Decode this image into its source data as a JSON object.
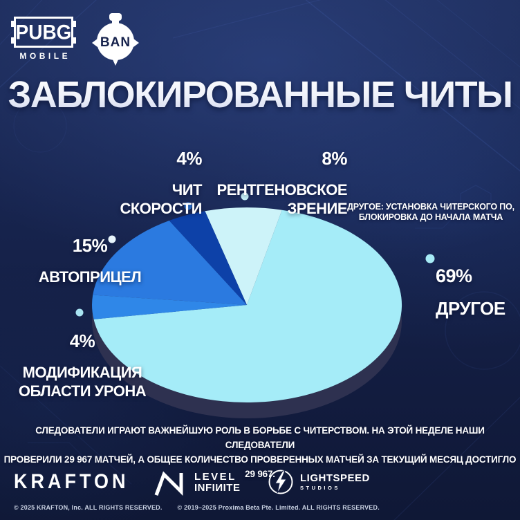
{
  "header": {
    "pubg_word": "PUBG",
    "pubg_sub": "MOBILE",
    "ban_label": "BAN"
  },
  "title": "ЗАБЛОКИРОВАННЫЕ ЧИТЫ",
  "chart_data": {
    "type": "pie",
    "title": "ЗАБЛОКИРОВАННЫЕ ЧИТЫ",
    "units": "percent",
    "start_angle_deg": -15.7,
    "clockwise": true,
    "rim_color": "#2e3150",
    "segments": [
      {
        "id": "xray",
        "label": "РЕНТГЕНОВСКОЕ ЗРЕНИЕ",
        "value": 8,
        "color": "#cdf3f9",
        "dot_color": "#c6f0f8"
      },
      {
        "id": "other",
        "label": "ДРУГОЕ",
        "value": 69,
        "color": "#a5ecf8",
        "dot_color": "#a7ebf6"
      },
      {
        "id": "damage-area",
        "label": "МОДИФИКАЦИЯ ОБЛАСТИ УРОНА",
        "value": 4,
        "color": "#2f87e8",
        "dot_color": "#a9e4f2"
      },
      {
        "id": "aimbot",
        "label": "АВТОПРИЦЕЛ",
        "value": 15,
        "color": "#2b7ae0",
        "dot_color": "#e8f5fc"
      },
      {
        "id": "speed",
        "label": "ЧИТ СКОРОСТИ",
        "value": 4,
        "color": "#0d41a8",
        "dot_color": "#2f7ce0"
      }
    ]
  },
  "callouts": {
    "speed": {
      "pct": "4%",
      "label": "ЧИТ\nСКОРОСТИ"
    },
    "xray": {
      "pct": "8%",
      "label": "РЕНТГЕНОВСКОЕ\nЗРЕНИЕ"
    },
    "aimbot": {
      "pct": "15%",
      "label": "АВТОПРИЦЕЛ"
    },
    "damage": {
      "pct": "4%",
      "label": "МОДИФИКАЦИЯ\nОБЛАСТИ УРОНА"
    },
    "other": {
      "pct": "69%",
      "label": "ДРУГОЕ"
    }
  },
  "other_note": "ДРУГОЕ: УСТАНОВКА ЧИТЕРСКОГО ПО,\nБЛОКИРОВКА ДО НАЧАЛА МАТЧА",
  "summary": "СЛЕДОВАТЕЛИ ИГРАЮТ ВАЖНЕЙШУЮ РОЛЬ В БОРЬБЕ С ЧИТЕРСТВОМ. НА ЭТОЙ НЕДЕЛЕ НАШИ СЛЕДОВАТЕЛИ\nПРОВЕРИЛИ 29 967 МАТЧЕЙ, А ОБЩЕЕ КОЛИЧЕСТВО ПРОВЕРЕННЫХ МАТЧЕЙ ЗА ТЕКУЩИЙ МЕСЯЦ ДОСТИГЛО 29 967.",
  "footer": {
    "krafton": "KRAFTON",
    "level_infinite_line1": "LEVEL",
    "level_infinite_line2": "INFIИITE",
    "lightspeed_line1": "LIGHTSPEED",
    "lightspeed_line2": "STUDIOS",
    "copyright_1": "© 2025 KRAFTON, Inc. ALL RIGHTS RESERVED.",
    "copyright_2": "© 2019–2025 Proxima Beta Pte. Limited. ALL RIGHTS RESERVED."
  }
}
